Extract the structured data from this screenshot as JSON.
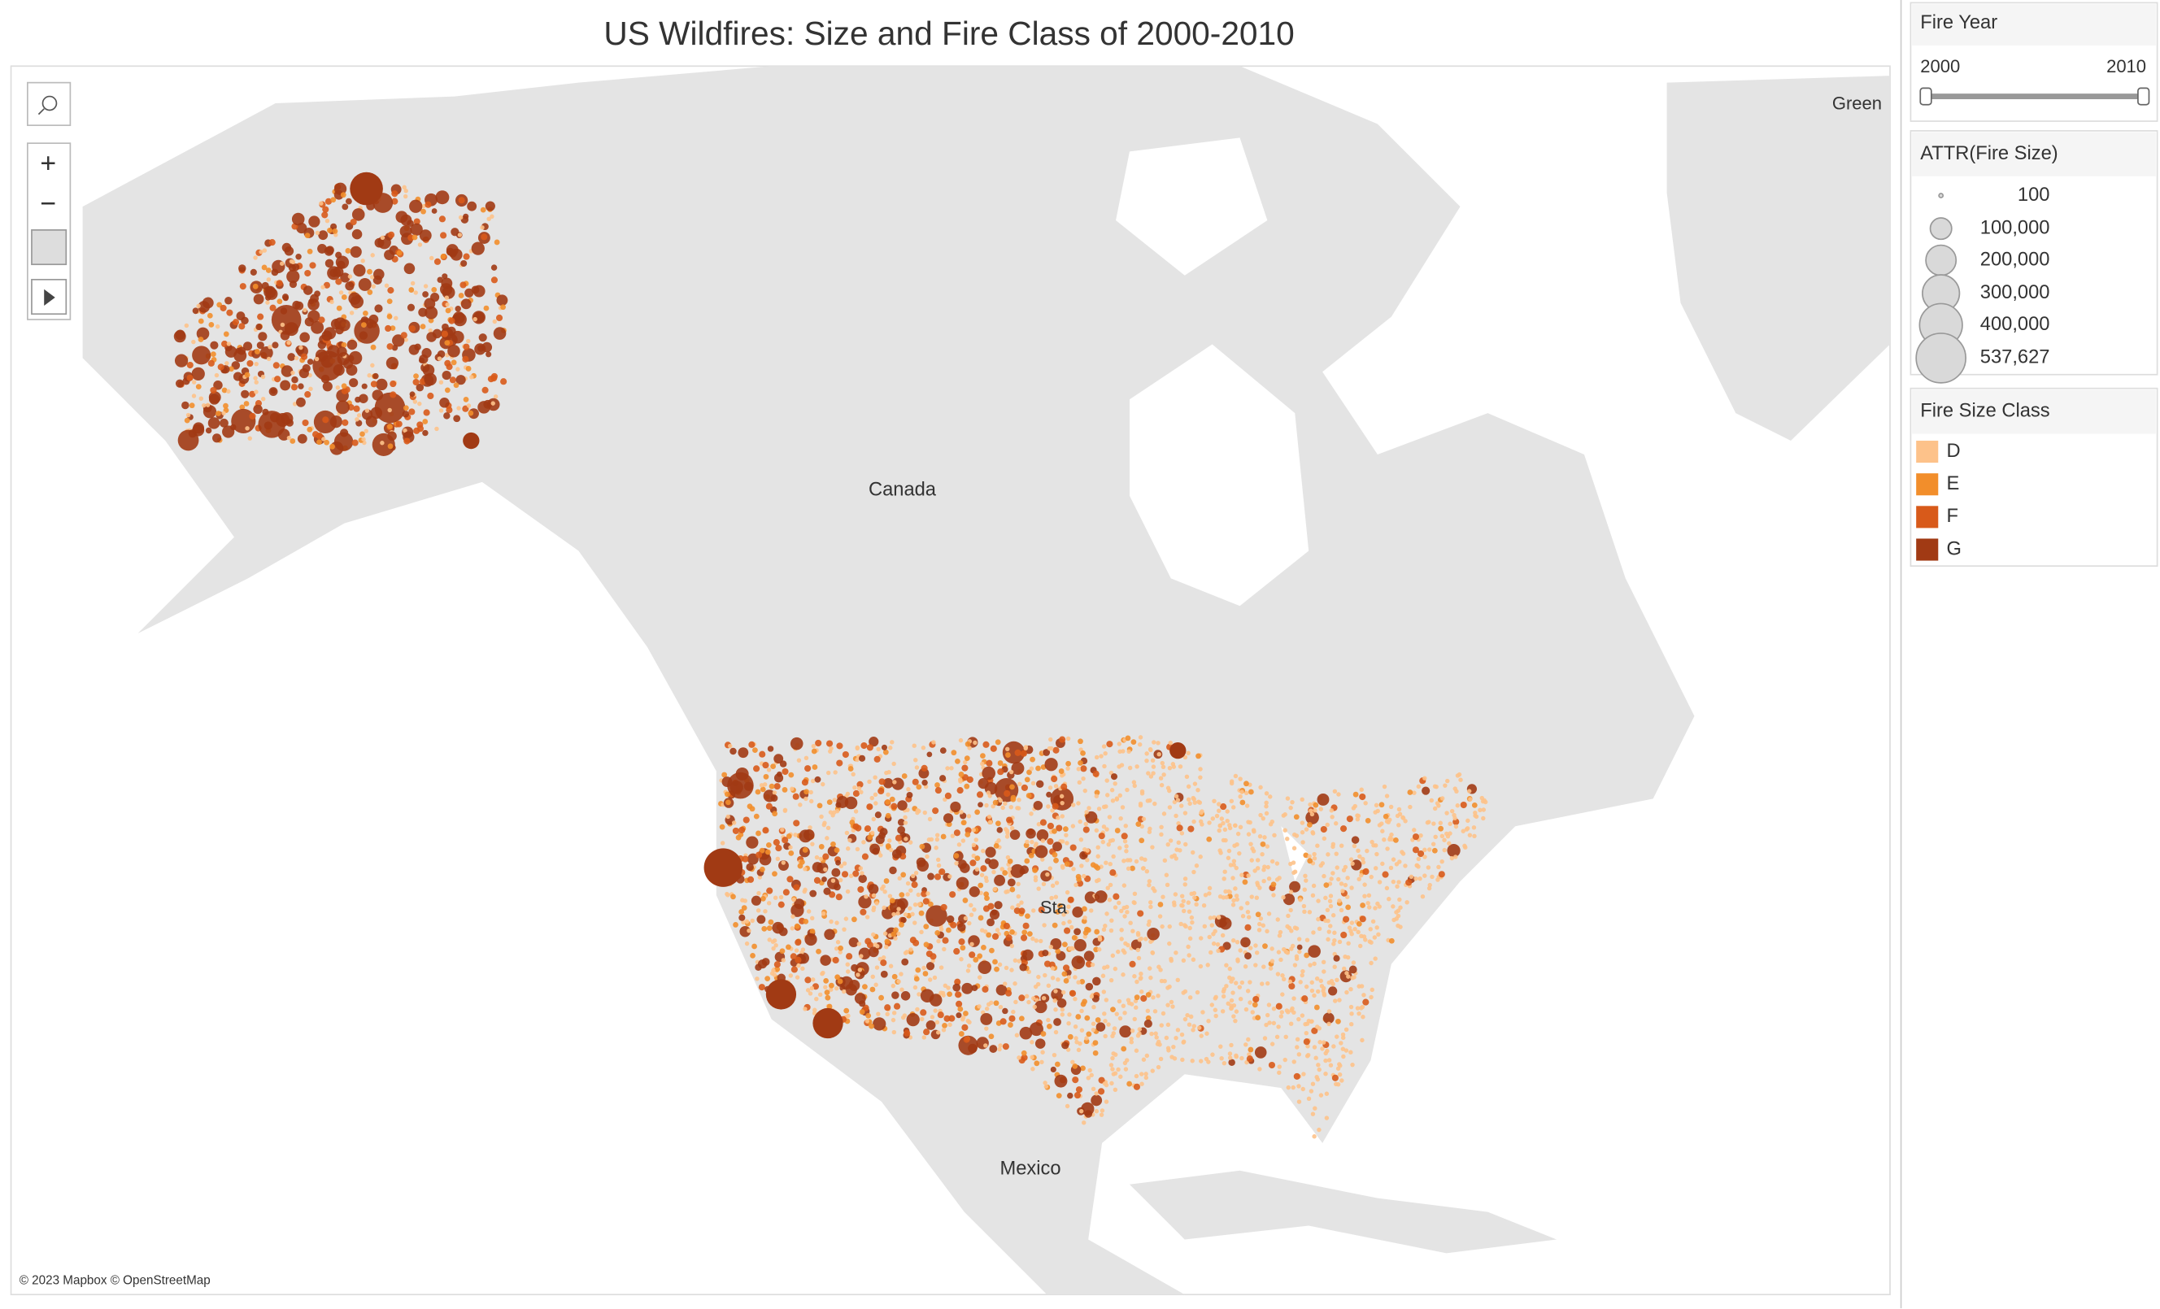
{
  "title": "US Wildfires: Size and Fire Class of 2000-2010",
  "map": {
    "labels": [
      "Canada",
      "Mexico",
      "Green",
      "Sta"
    ],
    "attribution": "© 2023 Mapbox © OpenStreetMap"
  },
  "filter": {
    "title": "Fire Year",
    "min": 2000,
    "max": 2010
  },
  "size_legend": {
    "title": "ATTR(Fire Size)",
    "items": [
      {
        "value": 100,
        "label": "100"
      },
      {
        "value": 100000,
        "label": "100,000"
      },
      {
        "value": 200000,
        "label": "200,000"
      },
      {
        "value": 300000,
        "label": "300,000"
      },
      {
        "value": 400000,
        "label": "400,000"
      },
      {
        "value": 537627,
        "label": "537,627"
      }
    ]
  },
  "color_legend": {
    "title": "Fire Size Class",
    "categories": [
      "D",
      "E",
      "F",
      "G"
    ],
    "colors": [
      "#fdc28a",
      "#f28e2b",
      "#d85a1a",
      "#a13a14"
    ]
  }
}
